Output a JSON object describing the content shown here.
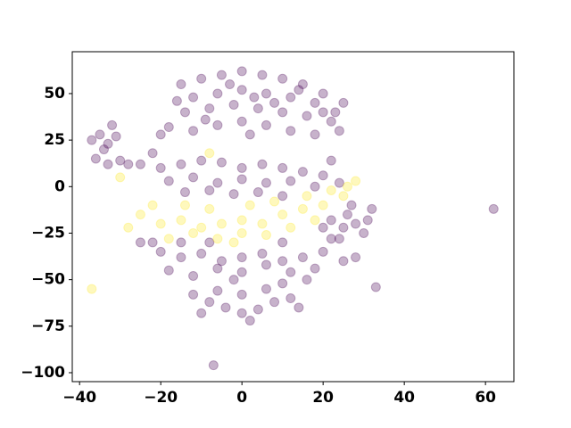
{
  "chart_data": {
    "type": "scatter",
    "xlim": [
      -41.8,
      67.0
    ],
    "ylim": [
      -104.8,
      72.5
    ],
    "xticks": [
      {
        "value": -40,
        "label": "−40"
      },
      {
        "value": -20,
        "label": "−20"
      },
      0,
      20,
      40,
      60
    ],
    "yticks": [
      {
        "value": -100,
        "label": "−100"
      },
      {
        "value": -75,
        "label": "−75"
      },
      {
        "value": -50,
        "label": "−50"
      },
      {
        "value": -25,
        "label": "−25"
      },
      0,
      25,
      50
    ],
    "series": [
      {
        "color": "#440154",
        "x": [
          -15,
          -10,
          -5,
          0,
          5,
          10,
          15,
          20,
          -12,
          -6,
          0,
          6,
          12,
          18,
          23,
          -14,
          -8,
          -2,
          4,
          10,
          16,
          22,
          -18,
          -12,
          -6,
          0,
          6,
          12,
          18,
          -20,
          -3,
          3,
          8,
          14,
          -9,
          2,
          25,
          -16,
          20,
          24,
          -37,
          -35,
          -33,
          -31,
          -34,
          -36,
          -33,
          -30,
          -28,
          -32,
          -20,
          -15,
          -10,
          -5,
          0,
          5,
          10,
          15,
          20,
          -18,
          -12,
          -6,
          0,
          6,
          12,
          18,
          24,
          -14,
          -8,
          -2,
          4,
          10,
          -25,
          -22,
          22,
          -20,
          -15,
          -10,
          -5,
          0,
          5,
          10,
          15,
          20,
          25,
          -18,
          -12,
          -6,
          0,
          6,
          12,
          18,
          -22,
          -15,
          22,
          28,
          -25,
          10,
          -8,
          16,
          -8,
          -4,
          0,
          4,
          8,
          12,
          -6,
          0,
          6,
          -10,
          2,
          10,
          -2,
          14,
          -12,
          22,
          25,
          28,
          31,
          26,
          30,
          24,
          32,
          20,
          27,
          62,
          -7,
          33
        ],
        "y": [
          55,
          58,
          60,
          62,
          60,
          58,
          55,
          50,
          48,
          50,
          52,
          50,
          48,
          45,
          40,
          40,
          42,
          44,
          42,
          40,
          38,
          35,
          32,
          30,
          33,
          35,
          33,
          30,
          28,
          28,
          55,
          48,
          45,
          52,
          36,
          28,
          45,
          46,
          40,
          30,
          25,
          28,
          23,
          27,
          20,
          15,
          12,
          14,
          12,
          33,
          10,
          12,
          14,
          13,
          10,
          12,
          10,
          8,
          6,
          3,
          5,
          2,
          4,
          2,
          3,
          0,
          2,
          -3,
          -2,
          -4,
          -3,
          -5,
          12,
          18,
          14,
          -35,
          -38,
          -36,
          -40,
          -38,
          -36,
          -40,
          -38,
          -35,
          -40,
          -45,
          -48,
          -44,
          -46,
          -42,
          -46,
          -44,
          -30,
          -30,
          -28,
          -38,
          -30,
          -30,
          -30,
          -50,
          -62,
          -65,
          -68,
          -66,
          -62,
          -60,
          -56,
          -58,
          -55,
          -68,
          -72,
          -52,
          -50,
          -65,
          -58,
          -18,
          -22,
          -20,
          -18,
          -15,
          -25,
          -28,
          -12,
          -22,
          -10,
          -12,
          -96,
          -54
        ]
      },
      {
        "color": "#fde725",
        "x": [
          -25,
          -20,
          -15,
          -10,
          -5,
          0,
          5,
          10,
          15,
          20,
          25,
          -18,
          -12,
          -6,
          0,
          6,
          12,
          18,
          -22,
          -14,
          -8,
          2,
          8,
          16,
          22,
          -28,
          -30,
          26,
          -8,
          -37,
          28,
          -2
        ],
        "y": [
          -15,
          -20,
          -18,
          -22,
          -20,
          -18,
          -20,
          -15,
          -12,
          -10,
          -5,
          -28,
          -25,
          -28,
          -25,
          -26,
          -22,
          -18,
          -10,
          -10,
          -12,
          -10,
          -8,
          -5,
          -2,
          -22,
          5,
          0,
          18,
          -55,
          3,
          -30
        ]
      }
    ]
  }
}
